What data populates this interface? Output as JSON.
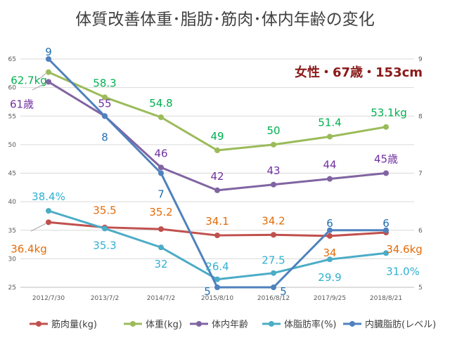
{
  "chart_data": {
    "type": "line",
    "title": "体質改善体重･脂肪･筋肉･体内年齢の変化",
    "subtitle": "女性・67歳・153cm",
    "categories": [
      "2012/7/30",
      "2013/7/2",
      "2014/7/2",
      "2015/8/10",
      "2016/8/12",
      "2017/9/25",
      "2018/8/21"
    ],
    "y_left": {
      "ylim": [
        25,
        65
      ],
      "ticks": [
        "25",
        "30",
        "35",
        "40",
        "45",
        "50",
        "55",
        "60",
        "65"
      ]
    },
    "y_right": {
      "ylim": [
        5,
        9
      ],
      "ticks": [
        "5",
        "6",
        "7",
        "8",
        "9"
      ]
    },
    "grid": true,
    "legend_position": "bottom",
    "series": [
      {
        "name": "筋肉量(kg)",
        "axis": "left",
        "color": "#c0504d",
        "values": [
          36.4,
          35.5,
          35.2,
          34.1,
          34.2,
          34,
          34.6
        ],
        "labels": [
          "36.4kg",
          "35.5",
          "35.2",
          "34.1",
          "34.2",
          "34",
          "34.6kg"
        ],
        "label_color": "#e46c0a"
      },
      {
        "name": "体重(kg)",
        "axis": "left",
        "color": "#9bbb59",
        "values": [
          62.7,
          58.3,
          54.8,
          49,
          50,
          51.4,
          53.1
        ],
        "labels": [
          "62.7kg",
          "58.3",
          "54.8",
          "49",
          "50",
          "51.4",
          "53.1kg"
        ],
        "label_color": "#00b050"
      },
      {
        "name": "体内年齢",
        "axis": "left",
        "color": "#8064a2",
        "values": [
          61,
          55,
          46,
          42,
          43,
          44,
          45
        ],
        "labels": [
          "61歳",
          "55",
          "46",
          "42",
          "43",
          "44",
          "45歳"
        ],
        "label_color": "#7030a0"
      },
      {
        "name": "体脂肪率(%)",
        "axis": "left",
        "color": "#4bacc6",
        "values": [
          38.4,
          35.3,
          32,
          26.4,
          27.5,
          29.9,
          31.0
        ],
        "labels": [
          "38.4%",
          "35.3",
          "32",
          "26.4",
          "27.5",
          "29.9",
          "31.0%"
        ],
        "label_color": "#31b0d0"
      },
      {
        "name": "内臓脂肪(レベル)",
        "axis": "right",
        "color": "#4f81bd",
        "values": [
          9,
          8,
          7,
          5,
          5,
          6,
          6
        ],
        "labels": [
          "9",
          "8",
          "7",
          "5",
          "5",
          "6",
          "6"
        ],
        "label_color": "#1f6fb0"
      }
    ]
  }
}
